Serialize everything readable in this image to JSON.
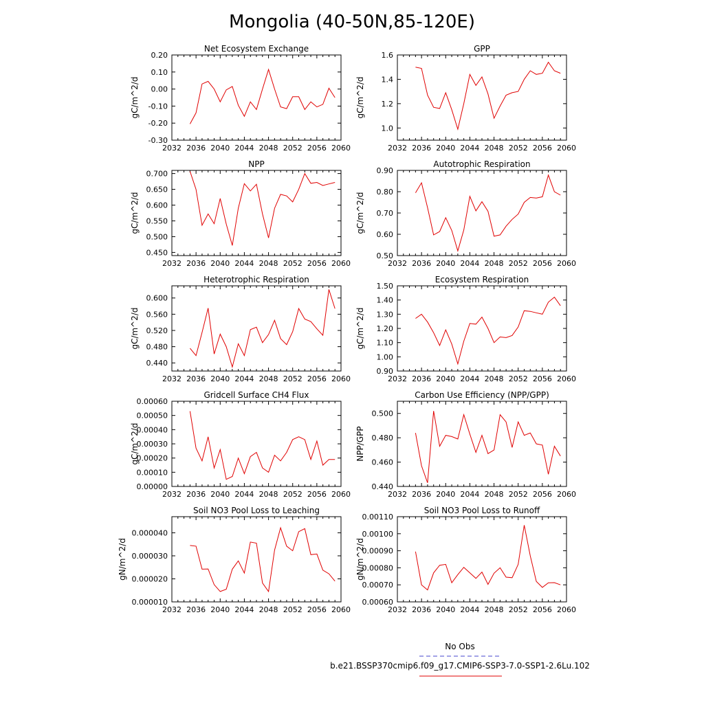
{
  "figure": {
    "title": "Mongolia (40-50N,85-120E)"
  },
  "legend": {
    "items": [
      {
        "label": "No Obs",
        "color": "#4444cc",
        "dash": "6,4"
      },
      {
        "label": "b.e21.BSSP370cmip6.f09_g17.CMIP6-SSP3-7.0-SSP1-2.6Lu.102",
        "color": "#e00000",
        "dash": ""
      }
    ]
  },
  "colors": {
    "series_line": "#e00000"
  },
  "chart_data": [
    {
      "type": "line",
      "title": "Net Ecosystem Exchange",
      "ylabel": "gC/m^2/d",
      "xlim": [
        2032,
        2060
      ],
      "ylim": [
        -0.3,
        0.2
      ],
      "xticks": [
        "2032",
        "2036",
        "2040",
        "2044",
        "2048",
        "2052",
        "2056",
        "2060"
      ],
      "yticks": [
        "-0.30",
        "-0.20",
        "-0.10",
        "0.00",
        "0.10",
        "0.20"
      ],
      "yticks_values": [
        -0.3,
        -0.2,
        -0.1,
        0.0,
        0.1,
        0.2
      ],
      "x": [
        2035,
        2036,
        2037,
        2038,
        2039,
        2040,
        2041,
        2042,
        2043,
        2044,
        2045,
        2046,
        2047,
        2048,
        2049,
        2050,
        2051,
        2052,
        2053,
        2054,
        2055,
        2056,
        2057,
        2058,
        2059
      ],
      "series": [
        {
          "values": [
            -0.205,
            -0.14,
            0.03,
            0.045,
            0.0,
            -0.075,
            -0.005,
            0.015,
            -0.095,
            -0.16,
            -0.075,
            -0.12,
            0.0,
            0.115,
            0.0,
            -0.105,
            -0.115,
            -0.045,
            -0.045,
            -0.12,
            -0.075,
            -0.105,
            -0.09,
            0.005,
            -0.05
          ]
        }
      ]
    },
    {
      "type": "line",
      "title": "GPP",
      "ylabel": "gC/m^2/d",
      "xlim": [
        2032,
        2060
      ],
      "ylim": [
        0.9,
        1.6
      ],
      "xticks": [
        "2032",
        "2036",
        "2040",
        "2044",
        "2048",
        "2052",
        "2056",
        "2060"
      ],
      "yticks": [
        "1.0",
        "1.2",
        "1.4",
        "1.6"
      ],
      "yticks_values": [
        1.0,
        1.2,
        1.4,
        1.6
      ],
      "x": [
        2035,
        2036,
        2037,
        2038,
        2039,
        2040,
        2041,
        2042,
        2043,
        2044,
        2045,
        2046,
        2047,
        2048,
        2049,
        2050,
        2051,
        2052,
        2053,
        2054,
        2055,
        2056,
        2057,
        2058,
        2059
      ],
      "series": [
        {
          "values": [
            1.5,
            1.49,
            1.27,
            1.17,
            1.16,
            1.29,
            1.15,
            0.99,
            1.2,
            1.44,
            1.35,
            1.42,
            1.28,
            1.08,
            1.18,
            1.27,
            1.29,
            1.3,
            1.4,
            1.47,
            1.44,
            1.45,
            1.54,
            1.47,
            1.45
          ]
        }
      ]
    },
    {
      "type": "line",
      "title": "NPP",
      "ylabel": "gC/m^2/d",
      "xlim": [
        2032,
        2060
      ],
      "ylim": [
        0.44,
        0.71
      ],
      "xticks": [
        "2032",
        "2036",
        "2040",
        "2044",
        "2048",
        "2052",
        "2056",
        "2060"
      ],
      "yticks": [
        "0.450",
        "0.500",
        "0.550",
        "0.600",
        "0.650",
        "0.700"
      ],
      "yticks_values": [
        0.45,
        0.5,
        0.55,
        0.6,
        0.65,
        0.7
      ],
      "x": [
        2035,
        2036,
        2037,
        2038,
        2039,
        2040,
        2041,
        2042,
        2043,
        2044,
        2045,
        2046,
        2047,
        2048,
        2049,
        2050,
        2051,
        2052,
        2053,
        2054,
        2055,
        2056,
        2057,
        2058,
        2059
      ],
      "series": [
        {
          "values": [
            0.707,
            0.65,
            0.536,
            0.572,
            0.541,
            0.621,
            0.54,
            0.472,
            0.59,
            0.668,
            0.645,
            0.666,
            0.572,
            0.496,
            0.59,
            0.634,
            0.629,
            0.61,
            0.65,
            0.7,
            0.669,
            0.672,
            0.662,
            0.667,
            0.672
          ]
        }
      ]
    },
    {
      "type": "line",
      "title": "Autotrophic Respiration",
      "ylabel": "gC/m^2/d",
      "xlim": [
        2032,
        2060
      ],
      "ylim": [
        0.5,
        0.9
      ],
      "xticks": [
        "2032",
        "2036",
        "2040",
        "2044",
        "2048",
        "2052",
        "2056",
        "2060"
      ],
      "yticks": [
        "0.50",
        "0.60",
        "0.70",
        "0.80",
        "0.90"
      ],
      "yticks_values": [
        0.5,
        0.6,
        0.7,
        0.8,
        0.9
      ],
      "x": [
        2035,
        2036,
        2037,
        2038,
        2039,
        2040,
        2041,
        2042,
        2043,
        2044,
        2045,
        2046,
        2047,
        2048,
        2049,
        2050,
        2051,
        2052,
        2053,
        2054,
        2055,
        2056,
        2057,
        2058,
        2059
      ],
      "series": [
        {
          "values": [
            0.795,
            0.842,
            0.725,
            0.597,
            0.613,
            0.678,
            0.618,
            0.522,
            0.62,
            0.778,
            0.71,
            0.753,
            0.708,
            0.591,
            0.597,
            0.638,
            0.67,
            0.695,
            0.75,
            0.773,
            0.77,
            0.776,
            0.878,
            0.8,
            0.784
          ]
        }
      ]
    },
    {
      "type": "line",
      "title": "Heterotrophic Respiration",
      "ylabel": "gC/m^2/d",
      "xlim": [
        2032,
        2060
      ],
      "ylim": [
        0.42,
        0.63
      ],
      "xticks": [
        "2032",
        "2036",
        "2040",
        "2044",
        "2048",
        "2052",
        "2056",
        "2060"
      ],
      "yticks": [
        "0.440",
        "0.480",
        "0.520",
        "0.560",
        "0.600"
      ],
      "yticks_values": [
        0.44,
        0.48,
        0.52,
        0.56,
        0.6
      ],
      "x": [
        2035,
        2036,
        2037,
        2038,
        2039,
        2040,
        2041,
        2042,
        2043,
        2044,
        2045,
        2046,
        2047,
        2048,
        2049,
        2050,
        2051,
        2052,
        2053,
        2054,
        2055,
        2056,
        2057,
        2058,
        2059
      ],
      "series": [
        {
          "values": [
            0.476,
            0.458,
            0.515,
            0.575,
            0.462,
            0.511,
            0.48,
            0.43,
            0.487,
            0.458,
            0.522,
            0.528,
            0.49,
            0.51,
            0.545,
            0.5,
            0.485,
            0.517,
            0.574,
            0.548,
            0.542,
            0.524,
            0.508,
            0.621,
            0.574
          ]
        }
      ]
    },
    {
      "type": "line",
      "title": "Ecosystem Respiration",
      "ylabel": "gC/m^2/d",
      "xlim": [
        2032,
        2060
      ],
      "ylim": [
        0.9,
        1.5
      ],
      "xticks": [
        "2032",
        "2036",
        "2040",
        "2044",
        "2048",
        "2052",
        "2056",
        "2060"
      ],
      "yticks": [
        "0.90",
        "1.00",
        "1.10",
        "1.20",
        "1.30",
        "1.40",
        "1.50"
      ],
      "yticks_values": [
        0.9,
        1.0,
        1.1,
        1.2,
        1.3,
        1.4,
        1.5
      ],
      "x": [
        2035,
        2036,
        2037,
        2038,
        2039,
        2040,
        2041,
        2042,
        2043,
        2044,
        2045,
        2046,
        2047,
        2048,
        2049,
        2050,
        2051,
        2052,
        2053,
        2054,
        2055,
        2056,
        2057,
        2058,
        2059
      ],
      "series": [
        {
          "values": [
            1.27,
            1.3,
            1.245,
            1.17,
            1.08,
            1.19,
            1.09,
            0.95,
            1.11,
            1.235,
            1.23,
            1.28,
            1.2,
            1.1,
            1.14,
            1.135,
            1.15,
            1.21,
            1.325,
            1.32,
            1.31,
            1.3,
            1.385,
            1.42,
            1.36
          ]
        }
      ]
    },
    {
      "type": "line",
      "title": "Gridcell Surface CH4 Flux",
      "ylabel": "gC/m^2/d",
      "xlim": [
        2032,
        2060
      ],
      "ylim": [
        0.0,
        0.0006
      ],
      "xticks": [
        "2032",
        "2036",
        "2040",
        "2044",
        "2048",
        "2052",
        "2056",
        "2060"
      ],
      "yticks": [
        "0.00000",
        "0.00010",
        "0.00020",
        "0.00030",
        "0.00040",
        "0.00050",
        "0.00060"
      ],
      "yticks_values": [
        0.0,
        0.0001,
        0.0002,
        0.0003,
        0.0004,
        0.0005,
        0.0006
      ],
      "x": [
        2035,
        2036,
        2037,
        2038,
        2039,
        2040,
        2041,
        2042,
        2043,
        2044,
        2045,
        2046,
        2047,
        2048,
        2049,
        2050,
        2051,
        2052,
        2053,
        2054,
        2055,
        2056,
        2057,
        2058,
        2059
      ],
      "series": [
        {
          "values": [
            0.00053,
            0.00027,
            0.00018,
            0.00035,
            0.00013,
            0.00026,
            5e-05,
            7e-05,
            0.0002,
            9e-05,
            0.00021,
            0.00024,
            0.00013,
            0.0001,
            0.00022,
            0.00018,
            0.00024,
            0.00033,
            0.00035,
            0.00033,
            0.00019,
            0.00032,
            0.00015,
            0.00019,
            0.00019
          ]
        }
      ]
    },
    {
      "type": "line",
      "title": "Carbon Use Efficiency (NPP/GPP)",
      "ylabel": "NPP/GPP",
      "xlim": [
        2032,
        2060
      ],
      "ylim": [
        0.44,
        0.51
      ],
      "xticks": [
        "2032",
        "2036",
        "2040",
        "2044",
        "2048",
        "2052",
        "2056",
        "2060"
      ],
      "yticks": [
        "0.440",
        "0.460",
        "0.480",
        "0.500"
      ],
      "yticks_values": [
        0.44,
        0.46,
        0.48,
        0.5
      ],
      "x": [
        2035,
        2036,
        2037,
        2038,
        2039,
        2040,
        2041,
        2042,
        2043,
        2044,
        2045,
        2046,
        2047,
        2048,
        2049,
        2050,
        2051,
        2052,
        2053,
        2054,
        2055,
        2056,
        2057,
        2058,
        2059
      ],
      "series": [
        {
          "values": [
            0.484,
            0.457,
            0.443,
            0.502,
            0.473,
            0.482,
            0.481,
            0.479,
            0.499,
            0.483,
            0.468,
            0.482,
            0.467,
            0.47,
            0.499,
            0.493,
            0.472,
            0.493,
            0.482,
            0.484,
            0.475,
            0.474,
            0.45,
            0.473,
            0.465
          ]
        }
      ]
    },
    {
      "type": "line",
      "title": "Soil NO3 Pool Loss to Leaching",
      "ylabel": "gN/m^2/d",
      "xlim": [
        2032,
        2060
      ],
      "ylim": [
        1e-05,
        4.7e-05
      ],
      "xticks": [
        "2032",
        "2036",
        "2040",
        "2044",
        "2048",
        "2052",
        "2056",
        "2060"
      ],
      "yticks": [
        "0.000010",
        "0.000020",
        "0.000030",
        "0.000040"
      ],
      "yticks_values": [
        1e-05,
        2e-05,
        3e-05,
        4e-05
      ],
      "x": [
        2035,
        2036,
        2037,
        2038,
        2039,
        2040,
        2041,
        2042,
        2043,
        2044,
        2045,
        2046,
        2047,
        2048,
        2049,
        2050,
        2051,
        2052,
        2053,
        2054,
        2055,
        2056,
        2057,
        2058,
        2059
      ],
      "series": [
        {
          "values": [
            3.45e-05,
            3.42e-05,
            2.42e-05,
            2.43e-05,
            1.75e-05,
            1.45e-05,
            1.55e-05,
            2.42e-05,
            2.78e-05,
            2.25e-05,
            3.6e-05,
            3.55e-05,
            1.82e-05,
            1.45e-05,
            3.25e-05,
            4.22e-05,
            3.42e-05,
            3.22e-05,
            4.05e-05,
            4.18e-05,
            3.05e-05,
            3.08e-05,
            2.38e-05,
            2.22e-05,
            1.9e-05
          ]
        }
      ]
    },
    {
      "type": "line",
      "title": "Soil NO3 Pool Loss to Runoff",
      "ylabel": "gN/m^2/d",
      "xlim": [
        2032,
        2060
      ],
      "ylim": [
        0.0006,
        0.0011
      ],
      "xticks": [
        "2032",
        "2036",
        "2040",
        "2044",
        "2048",
        "2052",
        "2056",
        "2060"
      ],
      "yticks": [
        "0.00060",
        "0.00070",
        "0.00080",
        "0.00090",
        "0.00100",
        "0.00110"
      ],
      "yticks_values": [
        0.0006,
        0.0007,
        0.0008,
        0.0009,
        0.001,
        0.0011
      ],
      "x": [
        2035,
        2036,
        2037,
        2038,
        2039,
        2040,
        2041,
        2042,
        2043,
        2044,
        2045,
        2046,
        2047,
        2048,
        2049,
        2050,
        2051,
        2052,
        2053,
        2054,
        2055,
        2056,
        2057,
        2058,
        2059
      ],
      "series": [
        {
          "values": [
            0.000895,
            0.0007,
            0.00067,
            0.00077,
            0.000815,
            0.00082,
            0.000712,
            0.00076,
            0.000803,
            0.00077,
            0.000738,
            0.000775,
            0.000703,
            0.000768,
            0.0008,
            0.000745,
            0.000742,
            0.00082,
            0.00105,
            0.00087,
            0.00072,
            0.000685,
            0.000712,
            0.000713,
            0.0007
          ]
        }
      ]
    }
  ]
}
